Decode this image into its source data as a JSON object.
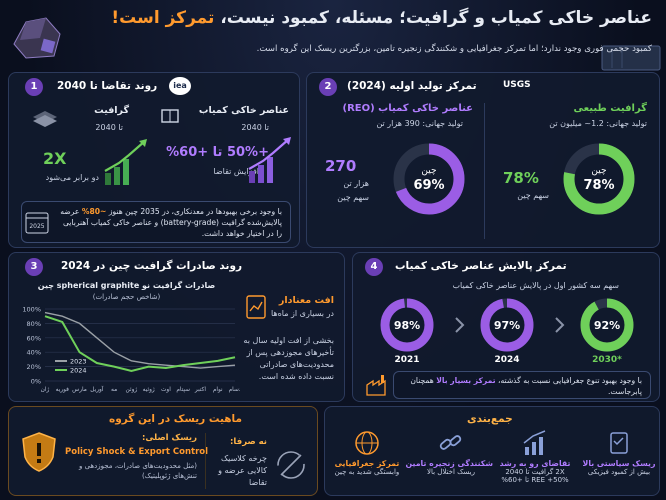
{
  "header": {
    "title_main": "عناصر خاکی کمیاب و گرافیت؛ مسئله، کمبود نیست،",
    "title_accent": "تمرکز است!",
    "subtitle": "کمبود حجمی فوری وجود ندارد؛ اما تمرکز جغرافیایی و شکنندگی زنجیره تامین، بزرگترین ریسک این گروه است."
  },
  "demand": {
    "number": "1",
    "title": "روند تقاضا تا 2040",
    "logo": "iea",
    "ree": {
      "title": "عناصر خاکی کمیاب",
      "horizon": "تا 2040",
      "figure": "+50% تا +60%",
      "caption": "افزایش تقاضا"
    },
    "graphite": {
      "title": "گرافیت",
      "horizon": "تا 2040",
      "figure": "2X",
      "caption": "دو برابر می‌شود"
    },
    "note": {
      "year": "2025",
      "part1": "با وجود برخی بهبودها در معدنکاری، در 2035 چین هنوز",
      "highlight": "~80%",
      "part2": "عرضه پالایش‌شده گرافیت (battery-grade) و عناصر خاکی کمیاب آهنربایی را در اختیار خواهد داشت."
    }
  },
  "production": {
    "number": "2",
    "title": "تمرکز تولید اولیه (2024)",
    "logo": "USGS",
    "graphite": {
      "title": "گرافیت طبیعی",
      "production": "تولید جهانی: 1.2~ میلیون تن",
      "donut": {
        "value": 78,
        "label": "78%",
        "center": "چین",
        "color": "#6fd05a"
      },
      "share_value": "78%",
      "share_label": "سهم چین"
    },
    "ree": {
      "title": "عناصر خاکی کمیاب (REO)",
      "production": "تولید جهانی: 390 هزار تن",
      "donut": {
        "value": 69,
        "label": "69%",
        "center": "چین",
        "color": "#9b5de5"
      },
      "amount": "270",
      "unit": "هزار تن",
      "share_label": "سهم چین"
    }
  },
  "exports": {
    "number": "3",
    "title": "روند صادرات گرافیت چین در 2024",
    "side": {
      "heading": "افت معنادار",
      "subheading": "در بسیاری از ماه‌ها",
      "text": "بخشی از افت اولیه سال به تأخیرهای مجوزدهی پس از محدودیت‌های صادراتی نسبت داده شده است."
    }
  },
  "chart_data": {
    "type": "line",
    "title": "صادرات گرافیت نو spherical graphite چین",
    "subtitle": "(شاخص حجم صادرات)",
    "categories": [
      "ژان",
      "فوریه",
      "مارس",
      "آوریل",
      "مه",
      "ژوئن",
      "ژوئیه",
      "اوت",
      "سپتام",
      "اکتبر",
      "نوام",
      "دسام"
    ],
    "series": [
      {
        "name": "2023",
        "color": "#9aa0a6",
        "values": [
          95,
          90,
          80,
          60,
          40,
          28,
          24,
          22,
          20,
          18,
          20,
          22
        ]
      },
      {
        "name": "2024",
        "color": "#6fd05a",
        "values": [
          90,
          82,
          40,
          25,
          20,
          14,
          20,
          18,
          22,
          25,
          28,
          33
        ]
      }
    ],
    "ylim": [
      0,
      100
    ],
    "yticks": [
      {
        "value": 0,
        "label": "0%"
      },
      {
        "value": 20,
        "label": "20%"
      },
      {
        "value": 40,
        "label": "40%"
      },
      {
        "value": 60,
        "label": "60%"
      },
      {
        "value": 80,
        "label": "80%"
      },
      {
        "value": 100,
        "label": "100%"
      }
    ],
    "grid": true
  },
  "refining": {
    "number": "4",
    "title": "تمرکز پالایش عناصر خاکی کمیاب",
    "subtitle": "سهم سه کشور اول در پالایش عناصر خاکی کمیاب",
    "donuts": [
      {
        "value": 98,
        "label": "98%",
        "year": "2021",
        "color": "#9b5de5"
      },
      {
        "value": 97,
        "label": "97%",
        "year": "2024",
        "color": "#9b5de5"
      },
      {
        "value": 92,
        "label": "92%",
        "year": "2030*",
        "color": "#6fd05a"
      }
    ],
    "note": {
      "part1": "با وجود بهبود تنوع جغرافیایی نسبت به گذشته،",
      "highlight": "تمرکز بسیار بالا",
      "part2": "همچنان پابرجاست."
    }
  },
  "risk": {
    "title": "ماهیت ریسک در این گروه",
    "main_label": "ریسک اصلی:",
    "main_value": "Policy Shock & Export Control",
    "main_detail": "(مثل محدودیت‌های صادرات، مجوزدهی و تنش‌های ژئوپلیتیک)",
    "not_label": "نه صرفا:",
    "not_value": "چرخه کلاسیک کالایی عرضه و تقاضا"
  },
  "summary": {
    "title": "جمع‌بندی",
    "items": [
      {
        "title": "ریسک سیاستی بالا",
        "lines": [
          "بیش از کمبود فیزیکی"
        ]
      },
      {
        "title": "تقاضای رو به رشد",
        "lines": [
          "2X گرافیت تا 2040",
          "REE +50% تا +60%"
        ]
      },
      {
        "title": "شکنندگی زنجیره تامین",
        "lines": [
          "ریسک اختلال بالا"
        ]
      },
      {
        "title": "تمرکز جغرافیایی",
        "lines": [
          "وابستگی شدید به چین"
        ]
      }
    ]
  }
}
